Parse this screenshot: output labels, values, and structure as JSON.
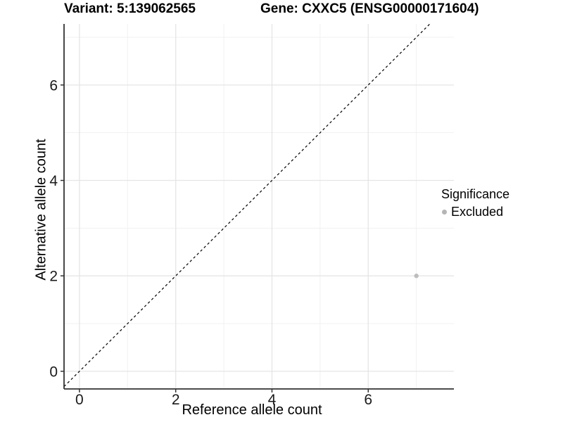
{
  "titles": {
    "variant": "Variant: 5:139062565",
    "gene": "Gene: CXXC5 (ENSG00000171604)"
  },
  "legend": {
    "title": "Significance",
    "items": [
      {
        "label": "Excluded",
        "marker": "circle",
        "color": "#b5b5b5"
      }
    ]
  },
  "colors": {
    "background": "#ffffff",
    "grid_major": "#e5e5e5",
    "grid_minor": "#f1f1f1",
    "axis_line": "#333333",
    "tick_mark": "#333333",
    "tick_label": "#1a1a1a",
    "point": "#bdbdbd",
    "reference_line": "#000000",
    "text": "#000000"
  },
  "chart_data": {
    "type": "scatter",
    "title": "Variant: 5:139062565    Gene: CXXC5 (ENSG00000171604)",
    "xlabel": "Reference allele count",
    "ylabel": "Alternative allele count",
    "xlim": [
      -0.32,
      7.78
    ],
    "ylim": [
      -0.37,
      7.28
    ],
    "x_ticks": [
      0,
      2,
      4,
      6
    ],
    "y_ticks": [
      0,
      2,
      4,
      6
    ],
    "x_minor_ticks": [
      1,
      3,
      5,
      7
    ],
    "y_minor_ticks": [
      1,
      3,
      5,
      7
    ],
    "grid": "major and minor, light gray on white",
    "legend_position": "right",
    "legend_title": "Significance",
    "reference_line": {
      "kind": "identity y=x",
      "style": "dashed",
      "color": "#000000",
      "slope": 1,
      "intercept": 0
    },
    "series": [
      {
        "name": "Excluded",
        "color": "#bdbdbd",
        "marker": "circle",
        "points": [
          {
            "x": 7,
            "y": 2
          }
        ]
      }
    ]
  }
}
